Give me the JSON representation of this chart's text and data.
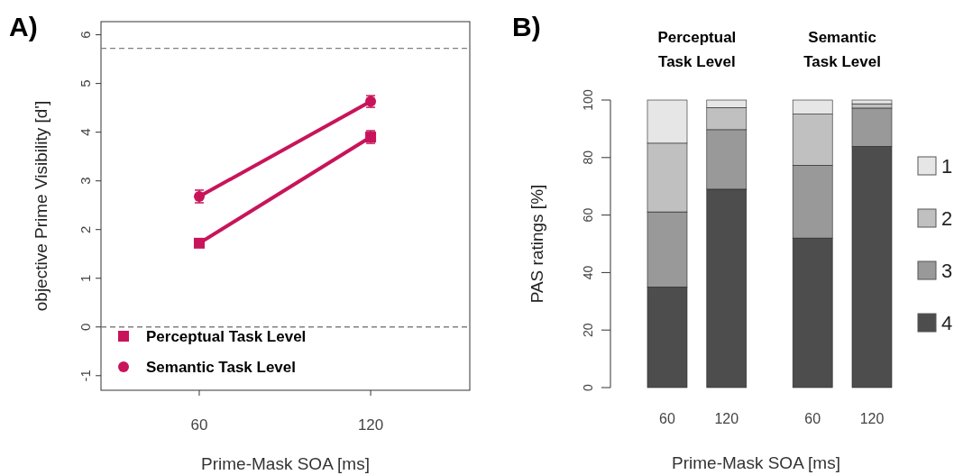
{
  "chart_data": [
    {
      "type": "line",
      "title": "A)",
      "xlabel": "Prime-Mask SOA [ms]",
      "ylabel": "objective Prime Visibility [d']",
      "x": [
        60,
        120
      ],
      "xlim": [
        25.6,
        154.7
      ],
      "xticks": [
        60,
        120
      ],
      "ylim": [
        -1.3,
        6.27
      ],
      "yticks": [
        -1,
        0,
        1,
        2,
        3,
        4,
        5,
        6
      ],
      "grid": false,
      "legend": "bottom left",
      "ref_lines": [
        {
          "axis": "y",
          "value": 5.72,
          "line_style": "dashed",
          "color": "#808080"
        },
        {
          "axis": "y",
          "value": 0,
          "line_style": "dashed",
          "color": "#808080"
        }
      ],
      "series": [
        {
          "name": "Perceptual Task Level",
          "color": "#c8145a",
          "marker": "square",
          "values": [
            1.72,
            3.9
          ],
          "errors": [
            null,
            0.13
          ]
        },
        {
          "name": "Semantic Task Level",
          "color": "#c8145a",
          "marker": "circle",
          "values": [
            2.68,
            4.63
          ],
          "errors": [
            0.13,
            0.12
          ]
        }
      ]
    },
    {
      "type": "bar",
      "title": "B)",
      "xlabel": "Prime-Mask SOA [ms]",
      "ylabel": "PAS ratings [%]",
      "stacked": true,
      "categories": [
        "60",
        "120",
        "60",
        "120"
      ],
      "ylim": [
        0,
        100
      ],
      "yticks": [
        0,
        20,
        40,
        60,
        80,
        100
      ],
      "grid": false,
      "legend": "right",
      "annotations": [
        "Perceptual\nTask Level",
        "Semantic\nTask Level"
      ],
      "series": [
        {
          "name": "4",
          "color": "#4d4d4d",
          "values": [
            35.0,
            69.0,
            52.0,
            83.9
          ]
        },
        {
          "name": "3",
          "color": "#999999",
          "values": [
            26.1,
            20.7,
            25.3,
            13.3
          ]
        },
        {
          "name": "2",
          "color": "#c0c0c0",
          "values": [
            23.9,
            7.7,
            17.8,
            1.5
          ]
        },
        {
          "name": "1",
          "color": "#e6e6e6",
          "values": [
            15.0,
            2.6,
            4.9,
            1.3
          ]
        }
      ]
    }
  ]
}
